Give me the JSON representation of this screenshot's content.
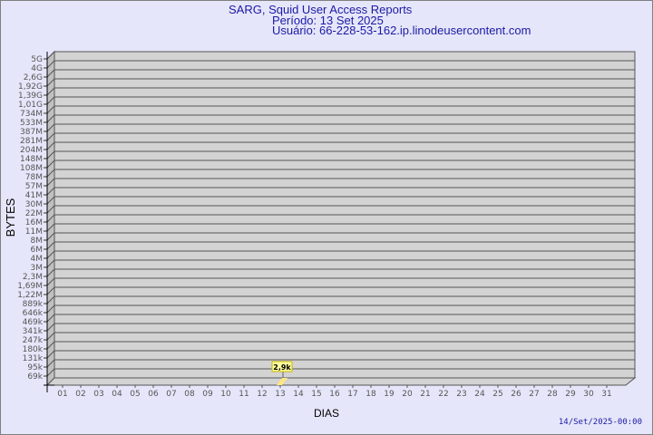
{
  "header": {
    "title": "SARG, Squid User Access Reports",
    "period": "Período: 13 Set 2025",
    "user": "Usuário: 66-228-53-162.ip.linodeusercontent.com"
  },
  "footer": {
    "timestamp": "14/Set/2025-00:00"
  },
  "chart_data": {
    "type": "bar",
    "title": "SARG, Squid User Access Reports",
    "xlabel": "DIAS",
    "ylabel": "BYTES",
    "y_scale": "log",
    "grid": true,
    "y_ticks": [
      "5G",
      "4G",
      "2,6G",
      "1,92G",
      "1,39G",
      "1,01G",
      "734M",
      "533M",
      "387M",
      "281M",
      "204M",
      "148M",
      "108M",
      "78M",
      "57M",
      "41M",
      "30M",
      "22M",
      "16M",
      "11M",
      "8M",
      "6M",
      "4M",
      "3M",
      "2,3M",
      "1,69M",
      "1,22M",
      "889k",
      "646k",
      "469k",
      "341k",
      "247k",
      "180k",
      "131k",
      "95k",
      "69k"
    ],
    "categories": [
      "01",
      "02",
      "03",
      "04",
      "05",
      "06",
      "07",
      "08",
      "09",
      "10",
      "11",
      "12",
      "13",
      "14",
      "15",
      "16",
      "17",
      "18",
      "19",
      "20",
      "21",
      "22",
      "23",
      "24",
      "25",
      "26",
      "27",
      "28",
      "29",
      "30",
      "31"
    ],
    "values": [
      null,
      null,
      null,
      null,
      null,
      null,
      null,
      null,
      null,
      null,
      null,
      null,
      2900,
      null,
      null,
      null,
      null,
      null,
      null,
      null,
      null,
      null,
      null,
      null,
      null,
      null,
      null,
      null,
      null,
      null,
      null
    ],
    "data_labels": {
      "13": "2,9k"
    },
    "colors": {
      "plot_bg": "#d3d3d3",
      "side": "#c0c0c0",
      "bar": "#ffe680",
      "label_bg": "#ffffa0",
      "text": "#1a1aa6",
      "tick_text": "#555555"
    }
  }
}
